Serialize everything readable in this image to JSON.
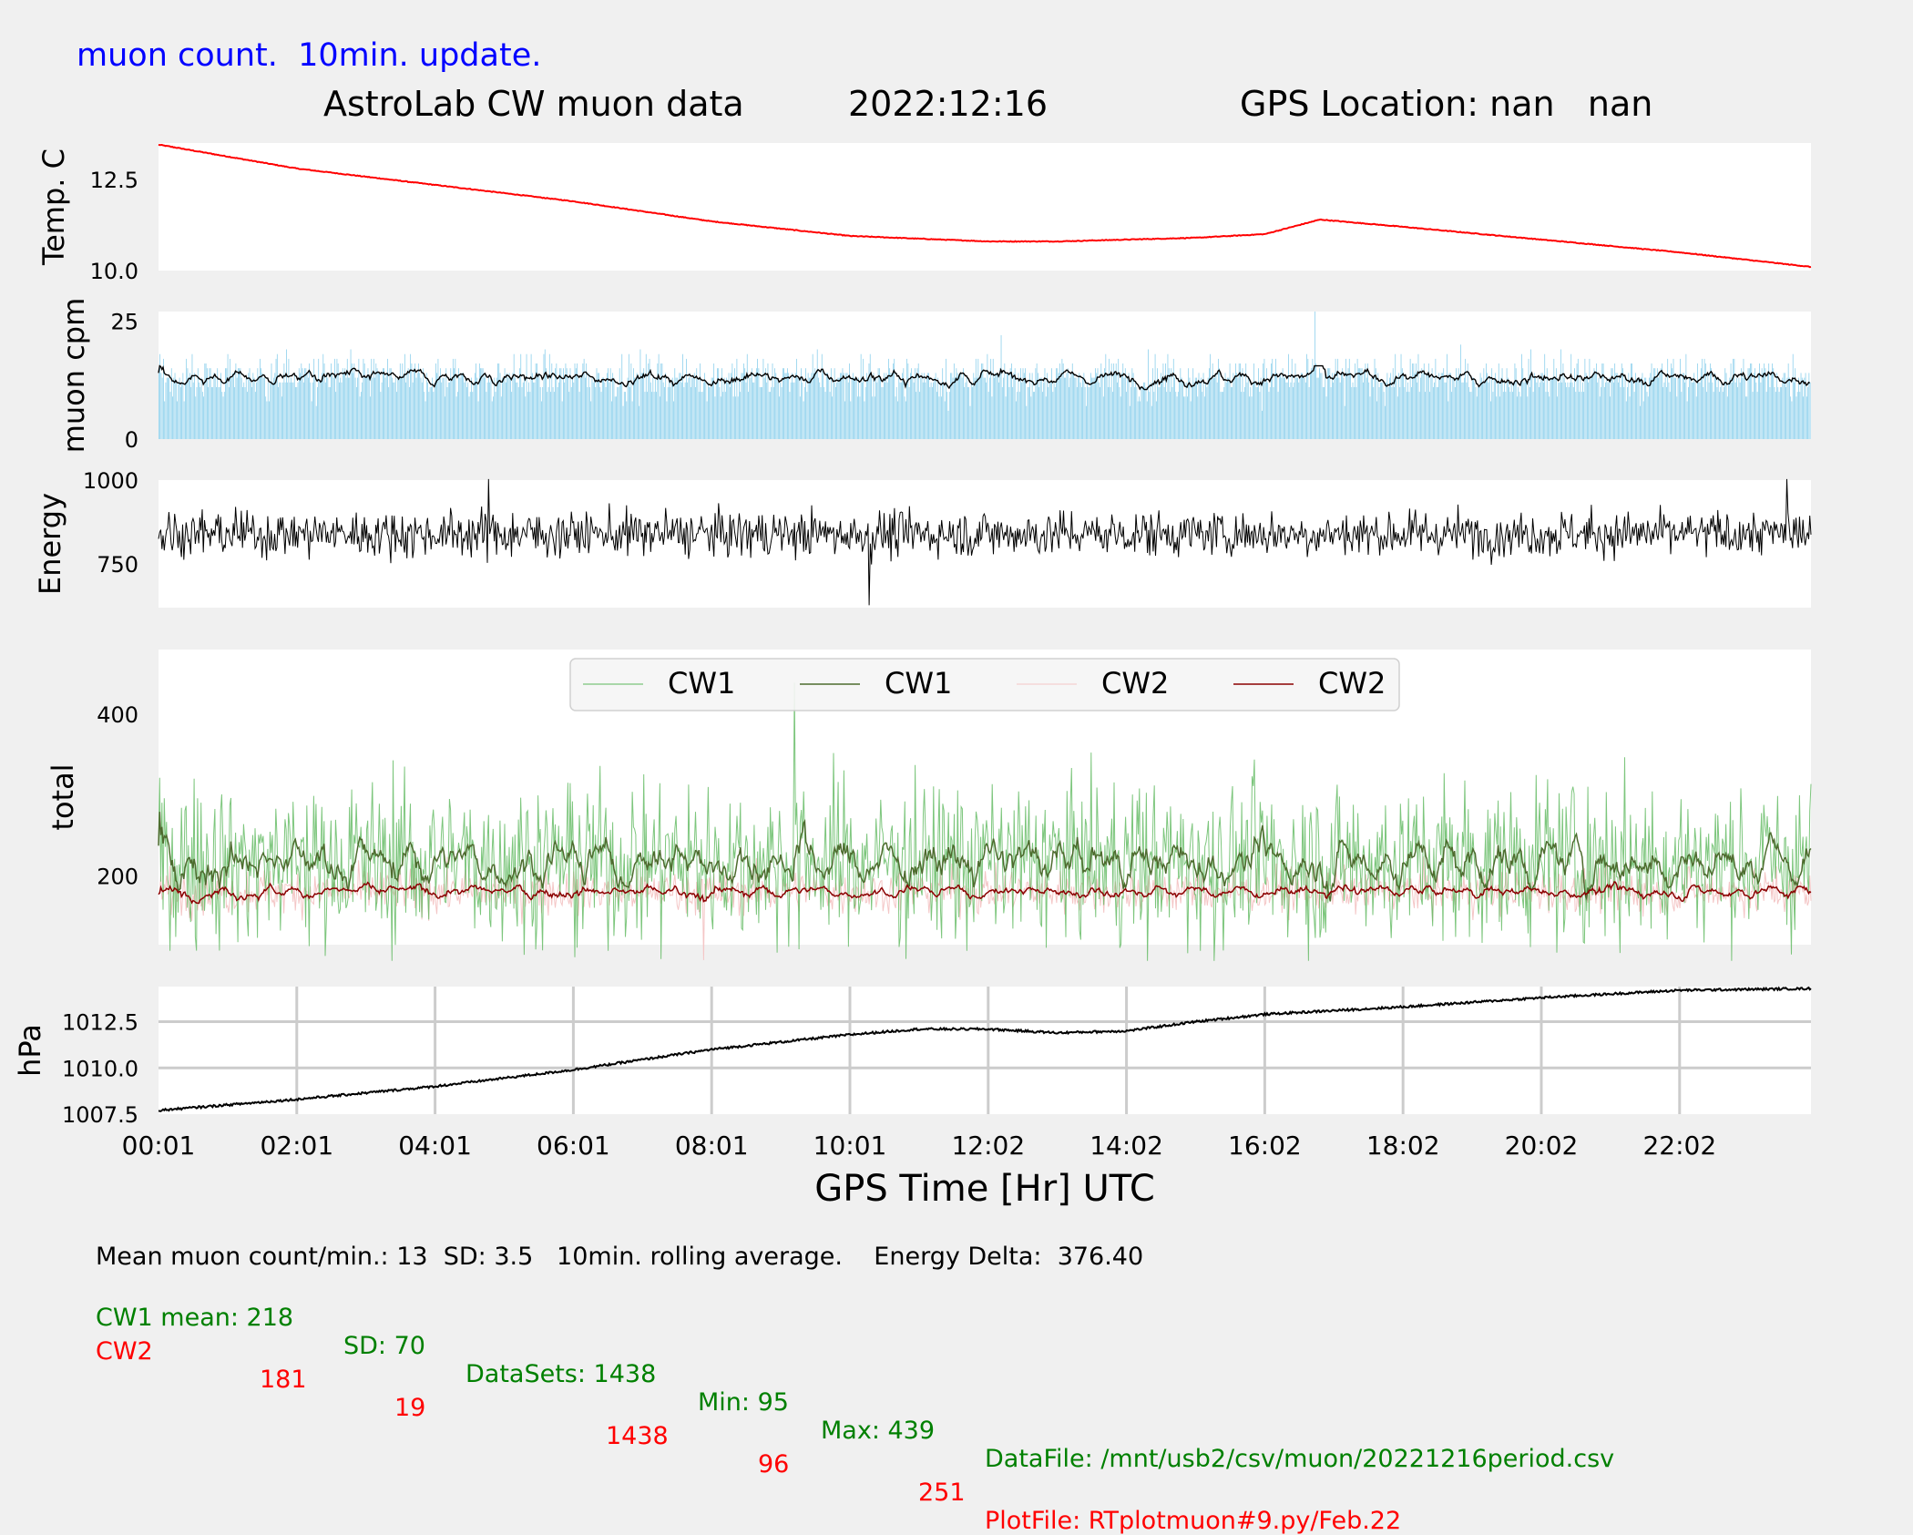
{
  "header": {
    "update_note": "muon count.  10min. update.",
    "title_left": "AstroLab CW muon data",
    "title_date": "2022:12:16",
    "title_gps": "GPS Location: nan   nan"
  },
  "colors": {
    "background": "#f0f0f0",
    "temp": "#ff0000",
    "muon_bars": "#87ceeb",
    "muon_avg": "#000000",
    "energy": "#000000",
    "cw1_raw": "#5cb85c",
    "cw1_avg": "#4d6b2e",
    "cw2_raw": "#f4c6c6",
    "cw2_avg": "#8b0000",
    "pressure": "#000000",
    "note_blue": "#0000ff",
    "stats_green": "#008000",
    "stats_red": "#ff0000"
  },
  "chart_data": [
    {
      "type": "line",
      "panel": "temperature",
      "ylabel": "Temp. C",
      "yticks": [
        "12.5",
        "10.0"
      ],
      "ylim": [
        10.0,
        13.5
      ],
      "x_hours": [
        0.02,
        2,
        4,
        6,
        8,
        10,
        12,
        13,
        14,
        15,
        16,
        16.8,
        18,
        20,
        22,
        23.9
      ],
      "values": [
        13.45,
        12.8,
        12.35,
        11.9,
        11.35,
        10.95,
        10.8,
        10.8,
        10.85,
        10.9,
        11.0,
        11.4,
        11.2,
        10.85,
        10.5,
        10.1
      ]
    },
    {
      "type": "bar",
      "panel": "muon_cpm",
      "ylabel": "muon cpm",
      "yticks": [
        "25",
        "0"
      ],
      "ylim": [
        0,
        27
      ],
      "mean": 13,
      "sd": 3.5,
      "max": 27,
      "rolling_average_note": "10min. rolling average",
      "avg_range": [
        10.5,
        15.5
      ]
    },
    {
      "type": "line",
      "panel": "energy",
      "ylabel": "Energy",
      "yticks": [
        "1000",
        "750"
      ],
      "ylim": [
        620,
        1000
      ],
      "mean": 840,
      "min": 627,
      "max": 1003
    },
    {
      "type": "line",
      "panel": "total",
      "ylabel": "total",
      "yticks": [
        "400",
        "200"
      ],
      "ylim": [
        115,
        480
      ],
      "legend_position": "top-center",
      "legend": [
        "CW1",
        "CW1",
        "CW2",
        "CW2"
      ],
      "series": [
        {
          "name": "CW1",
          "style": "raw",
          "mean": 218,
          "sd": 70,
          "min": 95,
          "max": 439
        },
        {
          "name": "CW1",
          "style": "rolling",
          "mean": 218,
          "min": 160,
          "max": 310
        },
        {
          "name": "CW2",
          "style": "raw",
          "mean": 181,
          "sd": 19,
          "min": 96,
          "max": 251
        },
        {
          "name": "CW2",
          "style": "rolling",
          "mean": 181,
          "min": 165,
          "max": 200
        }
      ]
    },
    {
      "type": "line",
      "panel": "pressure",
      "ylabel": "hPa",
      "yticks": [
        "1012.5",
        "1010.0",
        "1007.5"
      ],
      "ylim": [
        1007.5,
        1014.4
      ],
      "grid": true,
      "x_hours": [
        0,
        2,
        4,
        6,
        8,
        10,
        11,
        12,
        13,
        14,
        15,
        16,
        18,
        20,
        22,
        23.98
      ],
      "values": [
        1007.7,
        1008.3,
        1009.0,
        1009.9,
        1011.0,
        1011.8,
        1012.1,
        1012.1,
        1011.9,
        1012.0,
        1012.5,
        1012.9,
        1013.3,
        1013.8,
        1014.2,
        1014.3
      ]
    }
  ],
  "x_axis": {
    "label": "GPS Time  [Hr] UTC",
    "ticks": [
      "00:01",
      "02:01",
      "04:01",
      "06:01",
      "08:01",
      "10:01",
      "12:02",
      "14:02",
      "16:02",
      "18:02",
      "20:02",
      "22:02"
    ],
    "tick_hours": [
      0,
      2,
      4,
      6,
      8,
      10,
      12,
      14,
      16,
      18,
      20,
      22
    ],
    "range_hours": [
      0,
      23.9
    ]
  },
  "stats": {
    "line1": "Mean muon count/min.: 13  SD: 3.5   10min. rolling average.    Energy Delta:  376.40",
    "cw1": {
      "label": "CW1 mean: 218",
      "sd": "SD: 70",
      "datasets": "DataSets: 1438",
      "min": "Min: 95",
      "max": "Max: 439",
      "file": "DataFile: /mnt/usb2/csv/muon/20221216period.csv"
    },
    "cw2": {
      "label": "CW2",
      "mean": "181",
      "sd": "19",
      "datasets": "1438",
      "min": "96",
      "max": "251",
      "file": "PlotFile: RTplotmuon#9.py/Feb.22"
    }
  }
}
